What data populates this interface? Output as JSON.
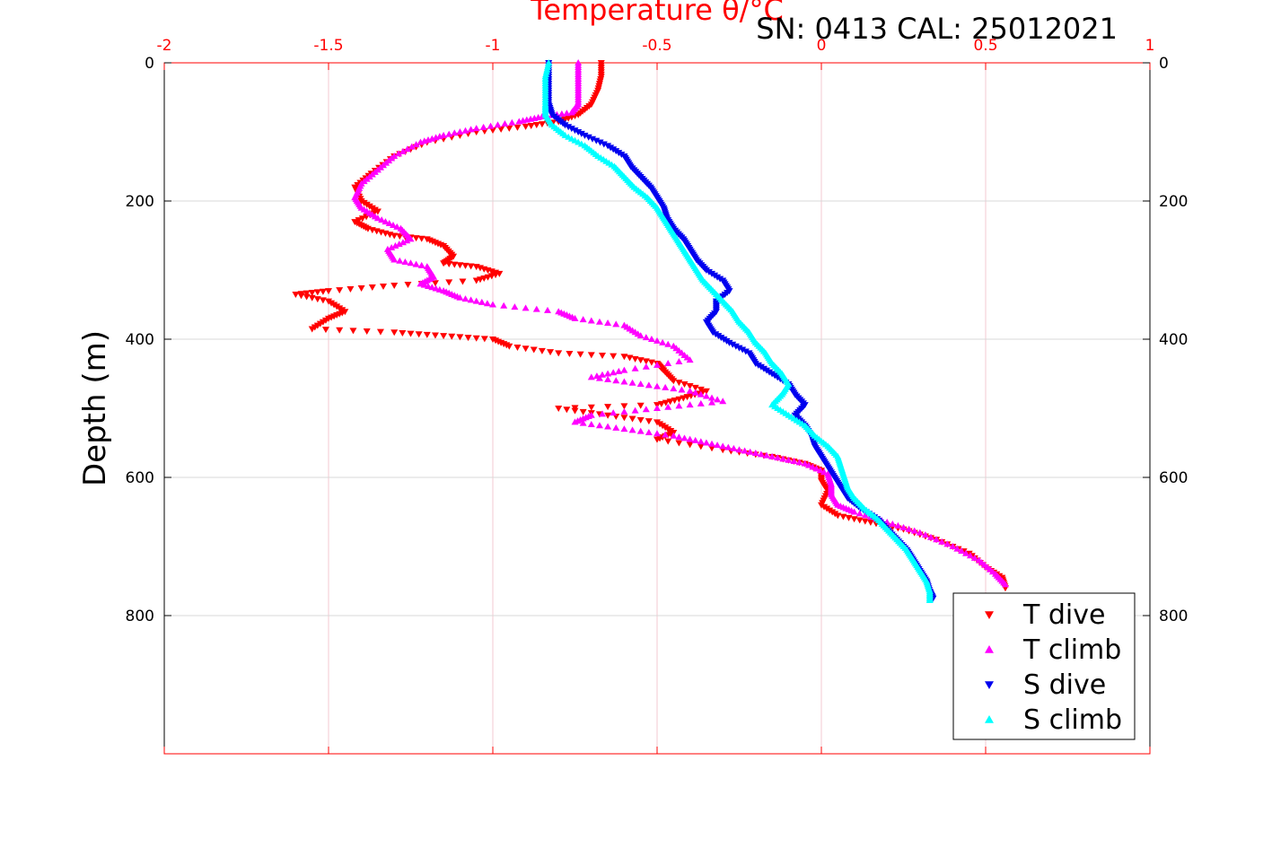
{
  "chart_data": {
    "type": "scatter",
    "title": "Temperature θ/°C",
    "annotation": "SN: 0413  CAL: 25012021",
    "xlabel": "Temperature θ/°C",
    "ylabel": "Depth (m)",
    "xlim": [
      -2,
      1
    ],
    "ylim": [
      0,
      1000
    ],
    "y_reversed": true,
    "x_axis_position": "top",
    "xticks": [
      "-2",
      "-1.5",
      "-1",
      "-0.5",
      "0",
      "0.5",
      "1"
    ],
    "yticks": [
      "0",
      "200",
      "400",
      "600",
      "800"
    ],
    "grid": true,
    "legend_position": "bottom-right",
    "colors": {
      "axis_x": "#ff0000",
      "axis_y": "#000000"
    },
    "series": [
      {
        "name": "T dive",
        "marker": "triangle-down",
        "color": "#ff0000",
        "points": [
          [
            -0.67,
            0
          ],
          [
            -0.67,
            20
          ],
          [
            -0.68,
            40
          ],
          [
            -0.7,
            60
          ],
          [
            -0.74,
            75
          ],
          [
            -0.8,
            85
          ],
          [
            -0.9,
            92
          ],
          [
            -1.05,
            100
          ],
          [
            -1.2,
            115
          ],
          [
            -1.3,
            135
          ],
          [
            -1.37,
            160
          ],
          [
            -1.42,
            180
          ],
          [
            -1.4,
            200
          ],
          [
            -1.35,
            215
          ],
          [
            -1.42,
            230
          ],
          [
            -1.38,
            240
          ],
          [
            -1.3,
            250
          ],
          [
            -1.2,
            255
          ],
          [
            -1.15,
            265
          ],
          [
            -1.12,
            280
          ],
          [
            -1.15,
            290
          ],
          [
            -1.05,
            295
          ],
          [
            -0.98,
            305
          ],
          [
            -1.05,
            315
          ],
          [
            -1.3,
            322
          ],
          [
            -1.5,
            330
          ],
          [
            -1.6,
            335
          ],
          [
            -1.5,
            345
          ],
          [
            -1.45,
            360
          ],
          [
            -1.5,
            370
          ],
          [
            -1.55,
            385
          ],
          [
            -1.3,
            390
          ],
          [
            -1.15,
            395
          ],
          [
            -1.0,
            400
          ],
          [
            -0.95,
            410
          ],
          [
            -0.8,
            420
          ],
          [
            -0.6,
            425
          ],
          [
            -0.5,
            435
          ],
          [
            -0.48,
            445
          ],
          [
            -0.45,
            460
          ],
          [
            -0.35,
            475
          ],
          [
            -0.42,
            485
          ],
          [
            -0.5,
            495
          ],
          [
            -0.8,
            500
          ],
          [
            -0.65,
            510
          ],
          [
            -0.5,
            520
          ],
          [
            -0.45,
            535
          ],
          [
            -0.5,
            545
          ],
          [
            -0.3,
            560
          ],
          [
            -0.15,
            570
          ],
          [
            -0.05,
            580
          ],
          [
            0.0,
            590
          ],
          [
            0.0,
            605
          ],
          [
            0.02,
            620
          ],
          [
            0.0,
            640
          ],
          [
            0.05,
            655
          ],
          [
            0.15,
            665
          ],
          [
            0.25,
            675
          ],
          [
            0.35,
            690
          ],
          [
            0.45,
            710
          ],
          [
            0.5,
            730
          ],
          [
            0.55,
            745
          ],
          [
            0.56,
            760
          ]
        ]
      },
      {
        "name": "T climb",
        "marker": "triangle-up",
        "color": "#ff00ff",
        "points": [
          [
            -0.74,
            0
          ],
          [
            -0.74,
            20
          ],
          [
            -0.74,
            40
          ],
          [
            -0.74,
            60
          ],
          [
            -0.76,
            72
          ],
          [
            -0.85,
            78
          ],
          [
            -0.92,
            85
          ],
          [
            -1.05,
            95
          ],
          [
            -1.15,
            105
          ],
          [
            -1.22,
            115
          ],
          [
            -1.3,
            135
          ],
          [
            -1.35,
            155
          ],
          [
            -1.4,
            175
          ],
          [
            -1.42,
            195
          ],
          [
            -1.4,
            210
          ],
          [
            -1.35,
            225
          ],
          [
            -1.28,
            240
          ],
          [
            -1.25,
            255
          ],
          [
            -1.32,
            270
          ],
          [
            -1.3,
            285
          ],
          [
            -1.2,
            295
          ],
          [
            -1.18,
            310
          ],
          [
            -1.22,
            320
          ],
          [
            -1.15,
            330
          ],
          [
            -1.1,
            340
          ],
          [
            -1.0,
            350
          ],
          [
            -0.8,
            360
          ],
          [
            -0.75,
            370
          ],
          [
            -0.6,
            380
          ],
          [
            -0.55,
            395
          ],
          [
            -0.45,
            410
          ],
          [
            -0.4,
            430
          ],
          [
            -0.6,
            445
          ],
          [
            -0.7,
            455
          ],
          [
            -0.55,
            465
          ],
          [
            -0.4,
            475
          ],
          [
            -0.3,
            490
          ],
          [
            -0.5,
            500
          ],
          [
            -0.7,
            510
          ],
          [
            -0.75,
            520
          ],
          [
            -0.6,
            530
          ],
          [
            -0.45,
            540
          ],
          [
            -0.35,
            550
          ],
          [
            -0.25,
            560
          ],
          [
            -0.15,
            570
          ],
          [
            -0.05,
            580
          ],
          [
            0.02,
            595
          ],
          [
            0.03,
            610
          ],
          [
            0.03,
            625
          ],
          [
            0.05,
            640
          ],
          [
            0.1,
            650
          ],
          [
            0.2,
            665
          ],
          [
            0.3,
            680
          ],
          [
            0.4,
            700
          ],
          [
            0.48,
            720
          ],
          [
            0.53,
            740
          ],
          [
            0.56,
            755
          ]
        ]
      },
      {
        "name": "S dive",
        "marker": "triangle-down",
        "color": "#0000ee",
        "points": [
          [
            -0.83,
            0
          ],
          [
            -0.83,
            20
          ],
          [
            -0.83,
            40
          ],
          [
            -0.83,
            60
          ],
          [
            -0.82,
            75
          ],
          [
            -0.78,
            90
          ],
          [
            -0.72,
            105
          ],
          [
            -0.65,
            120
          ],
          [
            -0.6,
            135
          ],
          [
            -0.58,
            150
          ],
          [
            -0.55,
            165
          ],
          [
            -0.52,
            180
          ],
          [
            -0.5,
            195
          ],
          [
            -0.48,
            210
          ],
          [
            -0.47,
            225
          ],
          [
            -0.45,
            240
          ],
          [
            -0.42,
            255
          ],
          [
            -0.4,
            270
          ],
          [
            -0.38,
            285
          ],
          [
            -0.35,
            300
          ],
          [
            -0.3,
            315
          ],
          [
            -0.28,
            330
          ],
          [
            -0.32,
            345
          ],
          [
            -0.32,
            360
          ],
          [
            -0.35,
            375
          ],
          [
            -0.33,
            390
          ],
          [
            -0.28,
            405
          ],
          [
            -0.22,
            420
          ],
          [
            -0.2,
            435
          ],
          [
            -0.15,
            450
          ],
          [
            -0.1,
            465
          ],
          [
            -0.08,
            480
          ],
          [
            -0.05,
            495
          ],
          [
            -0.08,
            510
          ],
          [
            -0.05,
            525
          ],
          [
            -0.03,
            540
          ],
          [
            -0.02,
            555
          ],
          [
            0.0,
            570
          ],
          [
            0.02,
            585
          ],
          [
            0.04,
            600
          ],
          [
            0.06,
            615
          ],
          [
            0.08,
            630
          ],
          [
            0.12,
            645
          ],
          [
            0.17,
            660
          ],
          [
            0.2,
            675
          ],
          [
            0.23,
            690
          ],
          [
            0.26,
            705
          ],
          [
            0.28,
            720
          ],
          [
            0.3,
            735
          ],
          [
            0.32,
            750
          ],
          [
            0.33,
            765
          ],
          [
            0.34,
            775
          ]
        ]
      },
      {
        "name": "S climb",
        "marker": "triangle-up",
        "color": "#00ffff",
        "points": [
          [
            -0.83,
            0
          ],
          [
            -0.84,
            20
          ],
          [
            -0.84,
            40
          ],
          [
            -0.84,
            60
          ],
          [
            -0.84,
            75
          ],
          [
            -0.82,
            90
          ],
          [
            -0.78,
            105
          ],
          [
            -0.72,
            120
          ],
          [
            -0.68,
            135
          ],
          [
            -0.63,
            150
          ],
          [
            -0.6,
            165
          ],
          [
            -0.57,
            180
          ],
          [
            -0.53,
            195
          ],
          [
            -0.5,
            210
          ],
          [
            -0.48,
            225
          ],
          [
            -0.46,
            240
          ],
          [
            -0.44,
            255
          ],
          [
            -0.42,
            270
          ],
          [
            -0.4,
            285
          ],
          [
            -0.38,
            300
          ],
          [
            -0.36,
            315
          ],
          [
            -0.33,
            330
          ],
          [
            -0.3,
            345
          ],
          [
            -0.27,
            360
          ],
          [
            -0.25,
            375
          ],
          [
            -0.22,
            390
          ],
          [
            -0.2,
            405
          ],
          [
            -0.17,
            420
          ],
          [
            -0.15,
            435
          ],
          [
            -0.12,
            450
          ],
          [
            -0.1,
            465
          ],
          [
            -0.12,
            480
          ],
          [
            -0.15,
            495
          ],
          [
            -0.1,
            510
          ],
          [
            -0.05,
            525
          ],
          [
            -0.02,
            540
          ],
          [
            0.02,
            555
          ],
          [
            0.05,
            570
          ],
          [
            0.06,
            585
          ],
          [
            0.07,
            600
          ],
          [
            0.08,
            615
          ],
          [
            0.1,
            630
          ],
          [
            0.13,
            645
          ],
          [
            0.17,
            660
          ],
          [
            0.2,
            675
          ],
          [
            0.23,
            690
          ],
          [
            0.26,
            705
          ],
          [
            0.28,
            720
          ],
          [
            0.3,
            735
          ],
          [
            0.32,
            750
          ],
          [
            0.33,
            765
          ],
          [
            0.33,
            778
          ]
        ]
      }
    ]
  }
}
